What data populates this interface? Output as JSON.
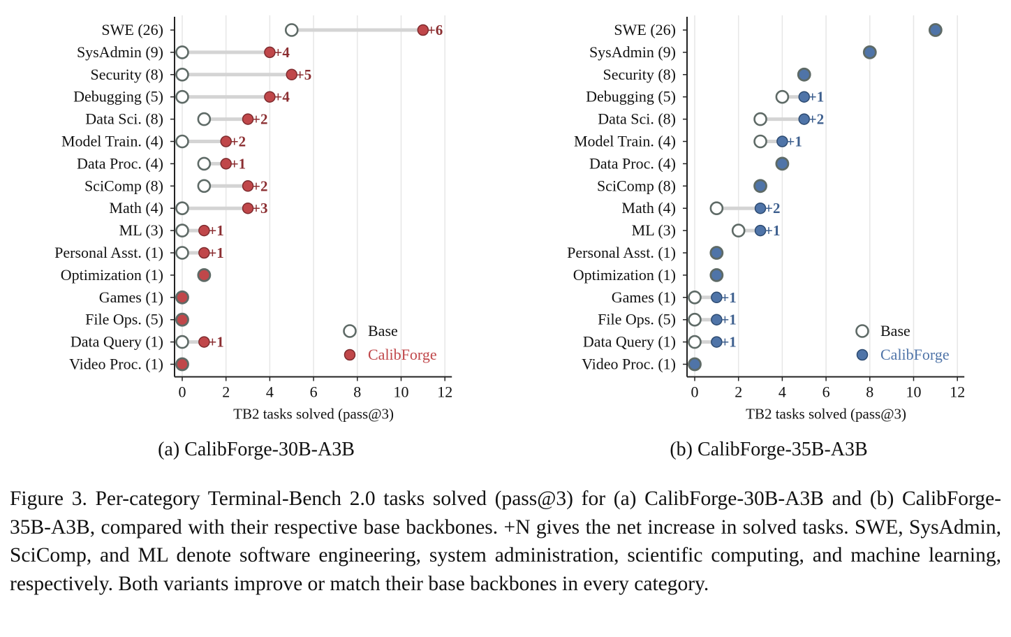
{
  "chart_data": [
    {
      "type": "dumbbell",
      "xlabel": "TB2 tasks solved (pass@3)",
      "xlim": [
        0,
        12
      ],
      "xticks": [
        0,
        2,
        4,
        6,
        8,
        10,
        12
      ],
      "grid": "vertical",
      "legend_placement": "bottom-right",
      "legend": [
        "Base",
        "CalibForge"
      ],
      "categories": [
        "SWE (26)",
        "SysAdmin (9)",
        "Security (8)",
        "Debugging (5)",
        "Data Sci. (8)",
        "Model Train. (4)",
        "Data Proc. (4)",
        "SciComp (8)",
        "Math (4)",
        "ML (3)",
        "Personal Asst. (1)",
        "Optimization (1)",
        "Games (1)",
        "File Ops. (5)",
        "Data Query (1)",
        "Video Proc. (1)"
      ],
      "series": [
        {
          "name": "Base",
          "values": [
            5,
            0,
            0,
            0,
            1,
            0,
            1,
            1,
            0,
            0,
            0,
            1,
            0,
            0,
            0,
            0
          ]
        },
        {
          "name": "CalibForge",
          "values": [
            11,
            4,
            5,
            4,
            3,
            2,
            2,
            3,
            3,
            1,
            1,
            1,
            0,
            0,
            1,
            0
          ]
        }
      ],
      "gain_labels": [
        "+6",
        "+4",
        "+5",
        "+4",
        "+2",
        "+2",
        "+1",
        "+2",
        "+3",
        "+1",
        "+1",
        "",
        "",
        "",
        "+1",
        ""
      ],
      "colors": {
        "accent": "#c0474a",
        "accent_edge": "#7d2b2e",
        "label": "#8b2e31"
      }
    },
    {
      "type": "dumbbell",
      "xlabel": "TB2 tasks solved (pass@3)",
      "xlim": [
        0,
        12
      ],
      "xticks": [
        0,
        2,
        4,
        6,
        8,
        10,
        12
      ],
      "grid": "vertical",
      "legend_placement": "bottom-right",
      "legend": [
        "Base",
        "CalibForge"
      ],
      "categories": [
        "SWE (26)",
        "SysAdmin (9)",
        "Security (8)",
        "Debugging (5)",
        "Data Sci. (8)",
        "Model Train. (4)",
        "Data Proc. (4)",
        "SciComp (8)",
        "Math (4)",
        "ML (3)",
        "Personal Asst. (1)",
        "Optimization (1)",
        "Games (1)",
        "File Ops. (5)",
        "Data Query (1)",
        "Video Proc. (1)"
      ],
      "series": [
        {
          "name": "Base",
          "values": [
            11,
            8,
            5,
            4,
            3,
            3,
            4,
            3,
            1,
            2,
            1,
            1,
            0,
            0,
            0,
            0
          ]
        },
        {
          "name": "CalibForge",
          "values": [
            11,
            8,
            5,
            5,
            5,
            4,
            4,
            3,
            3,
            3,
            1,
            1,
            1,
            1,
            1,
            0
          ]
        }
      ],
      "gain_labels": [
        "",
        "",
        "",
        "+1",
        "+2",
        "+1",
        "",
        "",
        "+2",
        "+1",
        "",
        "",
        "+1",
        "+1",
        "+1",
        ""
      ],
      "colors": {
        "accent": "#4f74a8",
        "accent_edge": "#2c4a70",
        "label": "#3d5f8e"
      }
    }
  ],
  "subcaptions": [
    "(a) CalibForge-30B-A3B",
    "(b) CalibForge-35B-A3B"
  ],
  "caption": "Figure 3. Per-category Terminal-Bench 2.0 tasks solved (pass@3) for (a) CalibForge-30B-A3B and (b) CalibForge-35B-A3B, compared with their respective base backbones. +N gives the net increase in solved tasks. SWE, SysAdmin, SciComp, and ML denote software engineering, system administration, scientific computing, and machine learning, respectively. Both variants improve or match their base backbones in every category."
}
